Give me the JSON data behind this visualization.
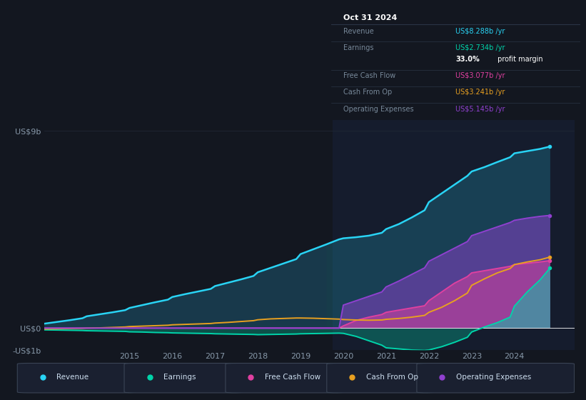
{
  "bg_color": "#131720",
  "chart_bg": "#131720",
  "grid_color": "#232b38",
  "years": [
    2013.0,
    2013.3,
    2013.6,
    2013.9,
    2014.0,
    2014.3,
    2014.6,
    2014.9,
    2015.0,
    2015.3,
    2015.6,
    2015.9,
    2016.0,
    2016.3,
    2016.6,
    2016.9,
    2017.0,
    2017.3,
    2017.6,
    2017.9,
    2018.0,
    2018.3,
    2018.6,
    2018.9,
    2019.0,
    2019.3,
    2019.6,
    2019.9,
    2020.0,
    2020.3,
    2020.6,
    2020.9,
    2021.0,
    2021.3,
    2021.6,
    2021.9,
    2022.0,
    2022.3,
    2022.6,
    2022.9,
    2023.0,
    2023.3,
    2023.6,
    2023.9,
    2024.0,
    2024.3,
    2024.6,
    2024.83
  ],
  "revenue": [
    0.2,
    0.28,
    0.36,
    0.45,
    0.54,
    0.63,
    0.72,
    0.82,
    0.92,
    1.05,
    1.18,
    1.3,
    1.42,
    1.55,
    1.67,
    1.79,
    1.92,
    2.07,
    2.22,
    2.38,
    2.55,
    2.75,
    2.95,
    3.15,
    3.38,
    3.6,
    3.82,
    4.05,
    4.1,
    4.15,
    4.22,
    4.35,
    4.52,
    4.75,
    5.05,
    5.38,
    5.75,
    6.15,
    6.55,
    6.95,
    7.15,
    7.35,
    7.58,
    7.8,
    7.98,
    8.08,
    8.18,
    8.288
  ],
  "earnings": [
    -0.08,
    -0.09,
    -0.1,
    -0.11,
    -0.12,
    -0.13,
    -0.14,
    -0.15,
    -0.17,
    -0.18,
    -0.2,
    -0.21,
    -0.22,
    -0.23,
    -0.24,
    -0.25,
    -0.26,
    -0.27,
    -0.28,
    -0.29,
    -0.3,
    -0.29,
    -0.28,
    -0.27,
    -0.26,
    -0.25,
    -0.24,
    -0.23,
    -0.24,
    -0.38,
    -0.58,
    -0.78,
    -0.9,
    -0.95,
    -1.0,
    -1.02,
    -1.0,
    -0.85,
    -0.65,
    -0.42,
    -0.18,
    0.05,
    0.25,
    0.5,
    1.0,
    1.65,
    2.2,
    2.734
  ],
  "free_cash_flow": [
    0.0,
    0.0,
    0.0,
    0.0,
    0.0,
    0.0,
    0.0,
    0.0,
    0.0,
    0.0,
    0.0,
    0.0,
    0.0,
    0.0,
    0.0,
    0.0,
    0.0,
    0.0,
    0.0,
    0.0,
    0.0,
    0.0,
    0.0,
    0.0,
    0.0,
    0.0,
    0.0,
    0.0,
    0.1,
    0.35,
    0.5,
    0.62,
    0.72,
    0.82,
    0.92,
    1.02,
    1.25,
    1.65,
    2.05,
    2.35,
    2.52,
    2.62,
    2.72,
    2.82,
    2.9,
    2.96,
    3.02,
    3.077
  ],
  "cash_from_op": [
    -0.04,
    -0.03,
    -0.02,
    -0.01,
    0.0,
    0.01,
    0.03,
    0.05,
    0.07,
    0.09,
    0.11,
    0.13,
    0.15,
    0.17,
    0.19,
    0.21,
    0.23,
    0.26,
    0.3,
    0.34,
    0.38,
    0.42,
    0.44,
    0.46,
    0.46,
    0.45,
    0.43,
    0.41,
    0.39,
    0.37,
    0.36,
    0.37,
    0.4,
    0.44,
    0.5,
    0.58,
    0.72,
    0.95,
    1.25,
    1.6,
    1.95,
    2.25,
    2.52,
    2.72,
    2.9,
    3.02,
    3.12,
    3.241
  ],
  "operating_expenses": [
    0.0,
    0.0,
    0.0,
    0.0,
    0.0,
    0.0,
    0.0,
    0.0,
    0.0,
    0.0,
    0.0,
    0.0,
    0.0,
    0.0,
    0.0,
    0.0,
    0.0,
    0.0,
    0.0,
    0.0,
    0.0,
    0.0,
    0.0,
    0.0,
    0.0,
    0.0,
    0.0,
    0.0,
    1.05,
    1.25,
    1.45,
    1.65,
    1.88,
    2.15,
    2.45,
    2.75,
    3.05,
    3.35,
    3.65,
    3.95,
    4.22,
    4.42,
    4.62,
    4.82,
    4.92,
    5.02,
    5.1,
    5.145
  ],
  "colors": {
    "revenue": "#29d4f5",
    "earnings": "#00d4aa",
    "free_cash_flow": "#e040a0",
    "cash_from_op": "#e8a020",
    "operating_expenses": "#9040d0"
  },
  "fill_alpha": {
    "revenue": 0.2,
    "earnings": 0.3,
    "free_cash_flow": 0.5,
    "cash_from_op": 0.0,
    "operating_expenses": 0.5
  },
  "ylim": [
    -1.0,
    9.5
  ],
  "xlim": [
    2013.0,
    2025.4
  ],
  "ytick_vals": [
    -1,
    0,
    9
  ],
  "ytick_labels": [
    "-US$1b",
    "US$0",
    "US$9b"
  ],
  "xtick_years": [
    2015,
    2016,
    2017,
    2018,
    2019,
    2020,
    2021,
    2022,
    2023,
    2024
  ],
  "forecast_start": 2019.75,
  "info_box": {
    "title": "Oct 31 2024",
    "rows": [
      {
        "label": "Revenue",
        "value": "US$8.288b /yr",
        "color": "#29d4f5"
      },
      {
        "label": "Earnings",
        "value": "US$2.734b /yr",
        "color": "#00d4aa"
      },
      {
        "label": "",
        "value": "33.0%",
        "suffix": " profit margin",
        "color": "#ffffff"
      },
      {
        "label": "Free Cash Flow",
        "value": "US$3.077b /yr",
        "color": "#e040a0"
      },
      {
        "label": "Cash From Op",
        "value": "US$3.241b /yr",
        "color": "#e8a020"
      },
      {
        "label": "Operating Expenses",
        "value": "US$5.145b /yr",
        "color": "#9040d0"
      }
    ]
  },
  "legend_items": [
    {
      "label": "Revenue",
      "color": "#29d4f5"
    },
    {
      "label": "Earnings",
      "color": "#00d4aa"
    },
    {
      "label": "Free Cash Flow",
      "color": "#e040a0"
    },
    {
      "label": "Cash From Op",
      "color": "#e8a020"
    },
    {
      "label": "Operating Expenses",
      "color": "#9040d0"
    }
  ]
}
